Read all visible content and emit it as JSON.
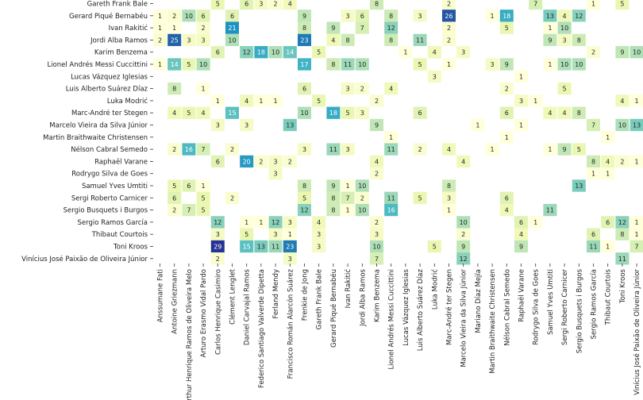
{
  "chart_data": {
    "type": "heatmap",
    "rows": [
      "Gareth Frank Bale",
      "Gerard Piqué Bernabéu",
      "Ivan Rakitić",
      "Jordi Alba Ramos",
      "Karim Benzema",
      "Lionel Andrés Messi Cuccittini",
      "Lucas Vázquez Iglesias",
      "Luis Alberto Suárez Díaz",
      "Luka Modrić",
      "Marc-André ter Stegen",
      "Marcelo Vieira da Silva Júnior",
      "Martin Braithwaite Christensen",
      "Nélson Cabral Semedo",
      "Raphaël Varane",
      "Rodrygo Silva de Goes",
      "Samuel Yves Umtiti",
      "Sergi Roberto Carnicer",
      "Sergio Busquets i Burgos",
      "Sergio Ramos García",
      "Thibaut Courtois",
      "Toni Kroos",
      "Vinícius José Paixão de Oliveira Júnior"
    ],
    "columns": [
      "Anssumane Fati",
      "Antoine Griezmann",
      "Arthur Henrique Ramos de Oliveira Melo",
      "Arturo Erasmo Vidal Pardo",
      "Carlos Henrique Casimiro",
      "Clément Lenglet",
      "Daniel Carvajal Ramos",
      "Federico Santiago Valverde Dipetta",
      "Ferland Mendy",
      "Francisco Román Alarcón Suárez",
      "Frenkie de Jong",
      "Gareth Frank Bale",
      "Gerard Piqué Bernabéu",
      "Ivan Rakitić",
      "Jordi Alba Ramos",
      "Karim Benzema",
      "Lionel Andrés Messi Cuccittini",
      "Lucas Vázquez Iglesias",
      "Luis Alberto Suárez Díaz",
      "Luka Modrić",
      "Marc-André ter Stegen",
      "Marcelo Vieira da Silva Júnior",
      "Mariano Díaz Mejía",
      "Martin Braithwaite Christensen",
      "Nélson Cabral Semedo",
      "Raphaël Varane",
      "Rodrygo Silva de Goes",
      "Samuel Yves Umtiti",
      "Sergi Roberto Carnicer",
      "Sergio Busquets i Burgos",
      "Sergio Ramos García",
      "Thibaut Courtois",
      "Toni Kroos",
      "Vinícius José Paixão de Oliveira Júnior"
    ],
    "cells": [
      {
        "r": 0,
        "c": 4,
        "v": 5
      },
      {
        "r": 0,
        "c": 6,
        "v": 6
      },
      {
        "r": 0,
        "c": 7,
        "v": 3
      },
      {
        "r": 0,
        "c": 8,
        "v": 2
      },
      {
        "r": 0,
        "c": 9,
        "v": 4
      },
      {
        "r": 0,
        "c": 15,
        "v": 8
      },
      {
        "r": 0,
        "c": 20,
        "v": 2
      },
      {
        "r": 0,
        "c": 26,
        "v": 7
      },
      {
        "r": 0,
        "c": 30,
        "v": 1
      },
      {
        "r": 0,
        "c": 32,
        "v": 5
      },
      {
        "r": 1,
        "c": 0,
        "v": 1
      },
      {
        "r": 1,
        "c": 1,
        "v": 2
      },
      {
        "r": 1,
        "c": 2,
        "v": 10
      },
      {
        "r": 1,
        "c": 3,
        "v": 6
      },
      {
        "r": 1,
        "c": 5,
        "v": 6
      },
      {
        "r": 1,
        "c": 10,
        "v": 9
      },
      {
        "r": 1,
        "c": 13,
        "v": 3
      },
      {
        "r": 1,
        "c": 14,
        "v": 6
      },
      {
        "r": 1,
        "c": 16,
        "v": 8
      },
      {
        "r": 1,
        "c": 18,
        "v": 3
      },
      {
        "r": 1,
        "c": 20,
        "v": 26
      },
      {
        "r": 1,
        "c": 23,
        "v": 1
      },
      {
        "r": 1,
        "c": 24,
        "v": 18
      },
      {
        "r": 1,
        "c": 27,
        "v": 13
      },
      {
        "r": 1,
        "c": 28,
        "v": 4
      },
      {
        "r": 1,
        "c": 29,
        "v": 12
      },
      {
        "r": 2,
        "c": 0,
        "v": 1
      },
      {
        "r": 2,
        "c": 1,
        "v": 1
      },
      {
        "r": 2,
        "c": 3,
        "v": 2
      },
      {
        "r": 2,
        "c": 5,
        "v": 21
      },
      {
        "r": 2,
        "c": 10,
        "v": 8
      },
      {
        "r": 2,
        "c": 12,
        "v": 9
      },
      {
        "r": 2,
        "c": 14,
        "v": 7
      },
      {
        "r": 2,
        "c": 16,
        "v": 12
      },
      {
        "r": 2,
        "c": 20,
        "v": 2
      },
      {
        "r": 2,
        "c": 24,
        "v": 5
      },
      {
        "r": 2,
        "c": 27,
        "v": 1
      },
      {
        "r": 2,
        "c": 28,
        "v": 10
      },
      {
        "r": 3,
        "c": 0,
        "v": 2
      },
      {
        "r": 3,
        "c": 1,
        "v": 25
      },
      {
        "r": 3,
        "c": 2,
        "v": 3
      },
      {
        "r": 3,
        "c": 3,
        "v": 3
      },
      {
        "r": 3,
        "c": 5,
        "v": 10
      },
      {
        "r": 3,
        "c": 10,
        "v": 23
      },
      {
        "r": 3,
        "c": 12,
        "v": 4
      },
      {
        "r": 3,
        "c": 13,
        "v": 8
      },
      {
        "r": 3,
        "c": 16,
        "v": 8
      },
      {
        "r": 3,
        "c": 18,
        "v": 11
      },
      {
        "r": 3,
        "c": 20,
        "v": 2
      },
      {
        "r": 3,
        "c": 27,
        "v": 9
      },
      {
        "r": 3,
        "c": 28,
        "v": 3
      },
      {
        "r": 3,
        "c": 29,
        "v": 8
      },
      {
        "r": 4,
        "c": 4,
        "v": 6
      },
      {
        "r": 4,
        "c": 6,
        "v": 12
      },
      {
        "r": 4,
        "c": 7,
        "v": 18
      },
      {
        "r": 4,
        "c": 8,
        "v": 10
      },
      {
        "r": 4,
        "c": 9,
        "v": 14
      },
      {
        "r": 4,
        "c": 11,
        "v": 5
      },
      {
        "r": 4,
        "c": 17,
        "v": 1
      },
      {
        "r": 4,
        "c": 19,
        "v": 4
      },
      {
        "r": 4,
        "c": 21,
        "v": 3
      },
      {
        "r": 4,
        "c": 30,
        "v": 2
      },
      {
        "r": 4,
        "c": 32,
        "v": 9
      },
      {
        "r": 4,
        "c": 33,
        "v": 10
      },
      {
        "r": 5,
        "c": 0,
        "v": 1
      },
      {
        "r": 5,
        "c": 1,
        "v": 14
      },
      {
        "r": 5,
        "c": 2,
        "v": 5
      },
      {
        "r": 5,
        "c": 3,
        "v": 10
      },
      {
        "r": 5,
        "c": 10,
        "v": 17
      },
      {
        "r": 5,
        "c": 12,
        "v": 8
      },
      {
        "r": 5,
        "c": 13,
        "v": 11
      },
      {
        "r": 5,
        "c": 14,
        "v": 10
      },
      {
        "r": 5,
        "c": 18,
        "v": 5
      },
      {
        "r": 5,
        "c": 20,
        "v": 1
      },
      {
        "r": 5,
        "c": 23,
        "v": 3
      },
      {
        "r": 5,
        "c": 24,
        "v": 9
      },
      {
        "r": 5,
        "c": 27,
        "v": 1
      },
      {
        "r": 5,
        "c": 28,
        "v": 10
      },
      {
        "r": 5,
        "c": 29,
        "v": 10
      },
      {
        "r": 6,
        "c": 19,
        "v": 3
      },
      {
        "r": 6,
        "c": 25,
        "v": 1
      },
      {
        "r": 7,
        "c": 1,
        "v": 8
      },
      {
        "r": 7,
        "c": 3,
        "v": 1
      },
      {
        "r": 7,
        "c": 10,
        "v": 6
      },
      {
        "r": 7,
        "c": 13,
        "v": 3
      },
      {
        "r": 7,
        "c": 14,
        "v": 2
      },
      {
        "r": 7,
        "c": 16,
        "v": 4
      },
      {
        "r": 7,
        "c": 24,
        "v": 2
      },
      {
        "r": 7,
        "c": 28,
        "v": 5
      },
      {
        "r": 8,
        "c": 4,
        "v": 1
      },
      {
        "r": 8,
        "c": 6,
        "v": 4
      },
      {
        "r": 8,
        "c": 7,
        "v": 1
      },
      {
        "r": 8,
        "c": 8,
        "v": 1
      },
      {
        "r": 8,
        "c": 11,
        "v": 5
      },
      {
        "r": 8,
        "c": 15,
        "v": 2
      },
      {
        "r": 8,
        "c": 25,
        "v": 3
      },
      {
        "r": 8,
        "c": 26,
        "v": 1
      },
      {
        "r": 8,
        "c": 32,
        "v": 4
      },
      {
        "r": 8,
        "c": 33,
        "v": 1
      },
      {
        "r": 9,
        "c": 1,
        "v": 4
      },
      {
        "r": 9,
        "c": 2,
        "v": 5
      },
      {
        "r": 9,
        "c": 3,
        "v": 4
      },
      {
        "r": 9,
        "c": 5,
        "v": 15
      },
      {
        "r": 9,
        "c": 10,
        "v": 10
      },
      {
        "r": 9,
        "c": 12,
        "v": 18
      },
      {
        "r": 9,
        "c": 13,
        "v": 5
      },
      {
        "r": 9,
        "c": 14,
        "v": 3
      },
      {
        "r": 9,
        "c": 18,
        "v": 6
      },
      {
        "r": 9,
        "c": 24,
        "v": 6
      },
      {
        "r": 9,
        "c": 27,
        "v": 4
      },
      {
        "r": 9,
        "c": 28,
        "v": 4
      },
      {
        "r": 9,
        "c": 29,
        "v": 8
      },
      {
        "r": 10,
        "c": 4,
        "v": 3
      },
      {
        "r": 10,
        "c": 6,
        "v": 3
      },
      {
        "r": 10,
        "c": 9,
        "v": 13
      },
      {
        "r": 10,
        "c": 15,
        "v": 9
      },
      {
        "r": 10,
        "c": 22,
        "v": 1
      },
      {
        "r": 10,
        "c": 25,
        "v": 1
      },
      {
        "r": 10,
        "c": 30,
        "v": 7
      },
      {
        "r": 10,
        "c": 32,
        "v": 10
      },
      {
        "r": 10,
        "c": 33,
        "v": 13
      },
      {
        "r": 11,
        "c": 16,
        "v": 1
      },
      {
        "r": 11,
        "c": 24,
        "v": 1
      },
      {
        "r": 11,
        "c": 31,
        "v": 1
      },
      {
        "r": 12,
        "c": 1,
        "v": 2
      },
      {
        "r": 12,
        "c": 2,
        "v": 16
      },
      {
        "r": 12,
        "c": 3,
        "v": 7
      },
      {
        "r": 12,
        "c": 5,
        "v": 2
      },
      {
        "r": 12,
        "c": 10,
        "v": 3
      },
      {
        "r": 12,
        "c": 12,
        "v": 11
      },
      {
        "r": 12,
        "c": 13,
        "v": 3
      },
      {
        "r": 12,
        "c": 16,
        "v": 11
      },
      {
        "r": 12,
        "c": 18,
        "v": 2
      },
      {
        "r": 12,
        "c": 20,
        "v": 4
      },
      {
        "r": 12,
        "c": 23,
        "v": 1
      },
      {
        "r": 12,
        "c": 27,
        "v": 1
      },
      {
        "r": 12,
        "c": 28,
        "v": 9
      },
      {
        "r": 12,
        "c": 29,
        "v": 5
      },
      {
        "r": 13,
        "c": 4,
        "v": 6
      },
      {
        "r": 13,
        "c": 6,
        "v": 20
      },
      {
        "r": 13,
        "c": 7,
        "v": 2
      },
      {
        "r": 13,
        "c": 8,
        "v": 3
      },
      {
        "r": 13,
        "c": 9,
        "v": 2
      },
      {
        "r": 13,
        "c": 15,
        "v": 4
      },
      {
        "r": 13,
        "c": 21,
        "v": 4
      },
      {
        "r": 13,
        "c": 30,
        "v": 8
      },
      {
        "r": 13,
        "c": 31,
        "v": 4
      },
      {
        "r": 13,
        "c": 32,
        "v": 2
      },
      {
        "r": 13,
        "c": 33,
        "v": 1
      },
      {
        "r": 14,
        "c": 8,
        "v": 3
      },
      {
        "r": 14,
        "c": 15,
        "v": 2
      },
      {
        "r": 14,
        "c": 30,
        "v": 1
      },
      {
        "r": 14,
        "c": 31,
        "v": 1
      },
      {
        "r": 15,
        "c": 1,
        "v": 5
      },
      {
        "r": 15,
        "c": 2,
        "v": 6
      },
      {
        "r": 15,
        "c": 3,
        "v": 1
      },
      {
        "r": 15,
        "c": 10,
        "v": 8
      },
      {
        "r": 15,
        "c": 12,
        "v": 9
      },
      {
        "r": 15,
        "c": 13,
        "v": 1
      },
      {
        "r": 15,
        "c": 14,
        "v": 10
      },
      {
        "r": 15,
        "c": 20,
        "v": 8
      },
      {
        "r": 15,
        "c": 29,
        "v": 13
      },
      {
        "r": 16,
        "c": 1,
        "v": 6
      },
      {
        "r": 16,
        "c": 3,
        "v": 5
      },
      {
        "r": 16,
        "c": 5,
        "v": 2
      },
      {
        "r": 16,
        "c": 10,
        "v": 5
      },
      {
        "r": 16,
        "c": 12,
        "v": 8
      },
      {
        "r": 16,
        "c": 13,
        "v": 7
      },
      {
        "r": 16,
        "c": 14,
        "v": 2
      },
      {
        "r": 16,
        "c": 16,
        "v": 11
      },
      {
        "r": 16,
        "c": 18,
        "v": 5
      },
      {
        "r": 16,
        "c": 20,
        "v": 3
      },
      {
        "r": 16,
        "c": 24,
        "v": 6
      },
      {
        "r": 17,
        "c": 1,
        "v": 2
      },
      {
        "r": 17,
        "c": 2,
        "v": 7
      },
      {
        "r": 17,
        "c": 3,
        "v": 5
      },
      {
        "r": 17,
        "c": 10,
        "v": 12
      },
      {
        "r": 17,
        "c": 12,
        "v": 8
      },
      {
        "r": 17,
        "c": 13,
        "v": 1
      },
      {
        "r": 17,
        "c": 14,
        "v": 10
      },
      {
        "r": 17,
        "c": 16,
        "v": 16
      },
      {
        "r": 17,
        "c": 20,
        "v": 1
      },
      {
        "r": 17,
        "c": 24,
        "v": 4
      },
      {
        "r": 17,
        "c": 27,
        "v": 11
      },
      {
        "r": 18,
        "c": 4,
        "v": 12
      },
      {
        "r": 18,
        "c": 6,
        "v": 1
      },
      {
        "r": 18,
        "c": 7,
        "v": 1
      },
      {
        "r": 18,
        "c": 8,
        "v": 12
      },
      {
        "r": 18,
        "c": 9,
        "v": 3
      },
      {
        "r": 18,
        "c": 11,
        "v": 4
      },
      {
        "r": 18,
        "c": 15,
        "v": 2
      },
      {
        "r": 18,
        "c": 21,
        "v": 10
      },
      {
        "r": 18,
        "c": 25,
        "v": 6
      },
      {
        "r": 18,
        "c": 26,
        "v": 1
      },
      {
        "r": 18,
        "c": 31,
        "v": 6
      },
      {
        "r": 18,
        "c": 32,
        "v": 12
      },
      {
        "r": 18,
        "c": 33,
        "v": 1
      },
      {
        "r": 19,
        "c": 4,
        "v": 3
      },
      {
        "r": 19,
        "c": 6,
        "v": 5
      },
      {
        "r": 19,
        "c": 8,
        "v": 3
      },
      {
        "r": 19,
        "c": 9,
        "v": 1
      },
      {
        "r": 19,
        "c": 11,
        "v": 3
      },
      {
        "r": 19,
        "c": 15,
        "v": 3
      },
      {
        "r": 19,
        "c": 21,
        "v": 2
      },
      {
        "r": 19,
        "c": 25,
        "v": 4
      },
      {
        "r": 19,
        "c": 30,
        "v": 6
      },
      {
        "r": 19,
        "c": 32,
        "v": 8
      },
      {
        "r": 19,
        "c": 33,
        "v": 1
      },
      {
        "r": 20,
        "c": 4,
        "v": 29
      },
      {
        "r": 20,
        "c": 6,
        "v": 15
      },
      {
        "r": 20,
        "c": 7,
        "v": 13
      },
      {
        "r": 20,
        "c": 8,
        "v": 11
      },
      {
        "r": 20,
        "c": 9,
        "v": 23
      },
      {
        "r": 20,
        "c": 11,
        "v": 3
      },
      {
        "r": 20,
        "c": 15,
        "v": 10
      },
      {
        "r": 20,
        "c": 19,
        "v": 5
      },
      {
        "r": 20,
        "c": 21,
        "v": 9
      },
      {
        "r": 20,
        "c": 25,
        "v": 9
      },
      {
        "r": 20,
        "c": 30,
        "v": 11
      },
      {
        "r": 20,
        "c": 31,
        "v": 1
      },
      {
        "r": 20,
        "c": 33,
        "v": 7
      },
      {
        "r": 21,
        "c": 4,
        "v": 2
      },
      {
        "r": 21,
        "c": 9,
        "v": 3
      },
      {
        "r": 21,
        "c": 15,
        "v": 7
      },
      {
        "r": 21,
        "c": 21,
        "v": 12
      },
      {
        "r": 21,
        "c": 32,
        "v": 11
      }
    ],
    "value_range": [
      1,
      29
    ],
    "colormap": "YlGnBu",
    "colors": {
      "low": "#ffffd9",
      "mid": "#41b6c4",
      "high": "#253494",
      "text_dark": "#262626",
      "text_light": "#ffffff"
    },
    "grid": false,
    "legend": "none"
  }
}
